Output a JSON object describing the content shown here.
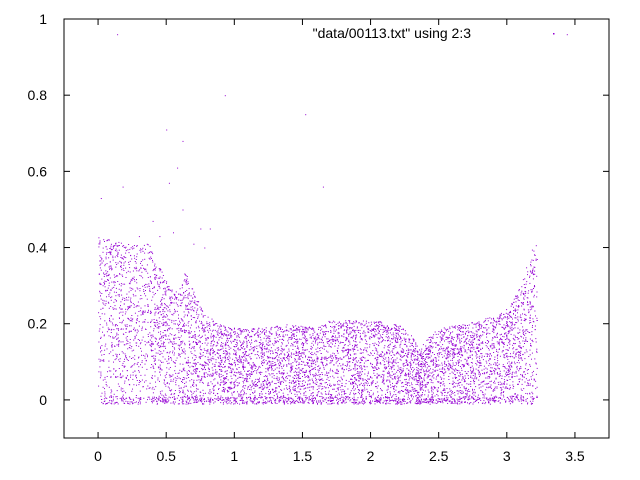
{
  "chart_data": {
    "type": "scatter",
    "title": "",
    "xlabel": "",
    "ylabel": "",
    "xlim": [
      -0.25,
      3.75
    ],
    "ylim": [
      -0.1,
      1.0
    ],
    "grid": false,
    "legend_position": "top-right",
    "x_ticks": [
      "0",
      "0.5",
      "1",
      "1.5",
      "2",
      "2.5",
      "3",
      "3.5"
    ],
    "x_tick_values": [
      0,
      0.5,
      1,
      1.5,
      2,
      2.5,
      3,
      3.5
    ],
    "y_ticks": [
      "0",
      "0.2",
      "0.4",
      "0.6",
      "0.8",
      "1"
    ],
    "y_tick_values": [
      0,
      0.2,
      0.4,
      0.6,
      0.8,
      1.0
    ],
    "series": [
      {
        "name": "\"data/00113.txt\" using 2:3",
        "color": "#9400d3",
        "x_range": [
          0.0,
          3.22
        ],
        "upper_envelope": [
          [
            0.0,
            0.43
          ],
          [
            0.1,
            0.42
          ],
          [
            0.2,
            0.41
          ],
          [
            0.3,
            0.41
          ],
          [
            0.36,
            0.42
          ],
          [
            0.42,
            0.37
          ],
          [
            0.48,
            0.33
          ],
          [
            0.52,
            0.3
          ],
          [
            0.56,
            0.28
          ],
          [
            0.6,
            0.3
          ],
          [
            0.64,
            0.34
          ],
          [
            0.68,
            0.3
          ],
          [
            0.74,
            0.26
          ],
          [
            0.8,
            0.22
          ],
          [
            0.9,
            0.2
          ],
          [
            1.0,
            0.19
          ],
          [
            1.2,
            0.19
          ],
          [
            1.4,
            0.2
          ],
          [
            1.6,
            0.19
          ],
          [
            1.7,
            0.21
          ],
          [
            1.8,
            0.21
          ],
          [
            2.0,
            0.21
          ],
          [
            2.2,
            0.2
          ],
          [
            2.3,
            0.17
          ],
          [
            2.36,
            0.13
          ],
          [
            2.4,
            0.16
          ],
          [
            2.5,
            0.19
          ],
          [
            2.7,
            0.2
          ],
          [
            2.9,
            0.22
          ],
          [
            3.0,
            0.24
          ],
          [
            3.1,
            0.3
          ],
          [
            3.16,
            0.37
          ],
          [
            3.2,
            0.42
          ],
          [
            3.22,
            0.41
          ]
        ],
        "lower_bound": -0.01,
        "outliers": [
          [
            0.14,
            0.96
          ],
          [
            0.93,
            0.8
          ],
          [
            1.52,
            0.75
          ],
          [
            0.5,
            0.71
          ],
          [
            0.62,
            0.68
          ],
          [
            0.58,
            0.61
          ],
          [
            0.52,
            0.57
          ],
          [
            1.65,
            0.56
          ],
          [
            0.18,
            0.56
          ],
          [
            0.02,
            0.53
          ],
          [
            0.62,
            0.5
          ],
          [
            0.4,
            0.47
          ],
          [
            0.75,
            0.45
          ],
          [
            0.82,
            0.45
          ],
          [
            0.55,
            0.44
          ],
          [
            0.7,
            0.41
          ],
          [
            0.78,
            0.4
          ],
          [
            0.45,
            0.43
          ],
          [
            3.44,
            0.96
          ],
          [
            0.3,
            0.43
          ]
        ]
      }
    ]
  }
}
